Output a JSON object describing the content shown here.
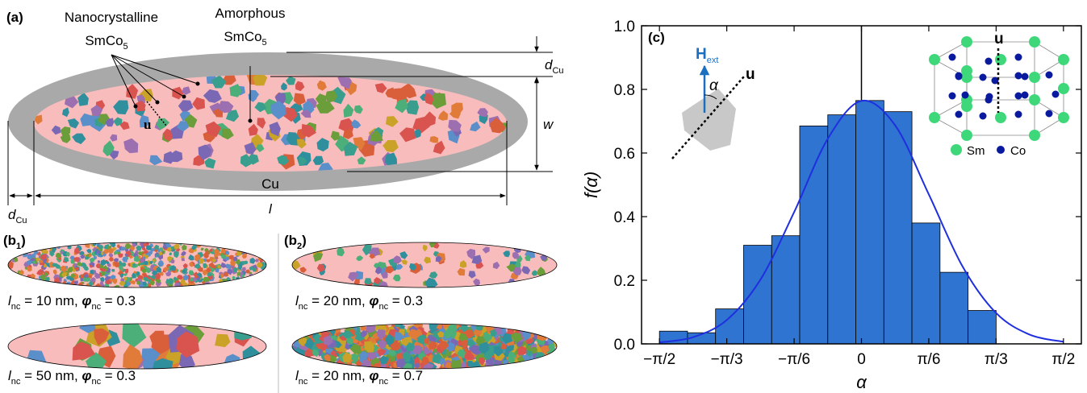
{
  "panel_a": {
    "label": "(a)",
    "nanocrystalline": [
      "Nanocrystalline",
      "SmCo",
      "5"
    ],
    "amorphous": [
      "Amorphous",
      "SmCo",
      "5"
    ],
    "d_top": [
      "d",
      "Cu"
    ],
    "w": "w",
    "cu": "Cu",
    "d_bottom": [
      "d",
      "Cu"
    ],
    "l": "l",
    "u": "u"
  },
  "panel_b": {
    "b1_label": [
      "(b",
      "1",
      ")"
    ],
    "b2_label": [
      "(b",
      "2",
      ")"
    ],
    "captions": [
      [
        "l",
        "nc",
        " = 10 nm, ",
        "φ",
        "nc",
        " = 0.3"
      ],
      [
        "l",
        "nc",
        " = 50 nm, ",
        "φ",
        "nc",
        " = 0.3"
      ],
      [
        "l",
        "nc",
        " = 20 nm, ",
        "φ",
        "nc",
        " = 0.3"
      ],
      [
        "l",
        "nc",
        " = 20 nm, ",
        "φ",
        "nc",
        " = 0.7"
      ]
    ]
  },
  "chart_data": {
    "type": "histogram",
    "panel_label": "(c)",
    "xlabel": "α",
    "ylabel": "f(α)",
    "bins": [
      -1.5708,
      -1.3526,
      -1.1345,
      -0.9163,
      -0.6981,
      -0.48,
      -0.2618,
      -0.0436,
      0.1745,
      0.3927,
      0.6109,
      0.829,
      1.0472
    ],
    "values": [
      0.04,
      0.035,
      0.11,
      0.31,
      0.34,
      0.685,
      0.72,
      0.765,
      0.73,
      0.38,
      0.225,
      0.105
    ],
    "color": "#2f74d0",
    "curve": {
      "color": "#1f2fe0",
      "x": [
        -1.5708,
        -1.309,
        -1.0472,
        -0.7854,
        -0.5236,
        -0.2618,
        0,
        0.2618,
        0.5236,
        0.7854,
        1.0472,
        1.309,
        1.5708
      ],
      "y": [
        0.0045,
        0.021,
        0.075,
        0.202,
        0.414,
        0.645,
        0.764,
        0.687,
        0.47,
        0.244,
        0.097,
        0.029,
        0.0066
      ]
    },
    "vline": 0,
    "xlim": [
      -1.71,
      1.71
    ],
    "ylim": [
      0,
      1
    ],
    "xticks": [
      {
        "value": -1.5708,
        "label": "−π/2"
      },
      {
        "value": -1.0472,
        "label": "−π/3"
      },
      {
        "value": -0.5236,
        "label": "−π/6"
      },
      0,
      {
        "value": 0.5236,
        "label": "π/6"
      },
      {
        "value": 1.0472,
        "label": "π/3"
      },
      {
        "value": 1.5708,
        "label": "π/2"
      }
    ],
    "yticks": [
      {
        "value": 0,
        "label": "0.0"
      },
      0.2,
      0.4,
      0.6,
      0.8,
      {
        "value": 1,
        "label": "1.0"
      }
    ],
    "inset": {
      "h": [
        "H",
        "ext"
      ],
      "alpha": "α",
      "u_left": "u",
      "u_right": "u",
      "sm": "Sm",
      "co": "Co"
    }
  }
}
